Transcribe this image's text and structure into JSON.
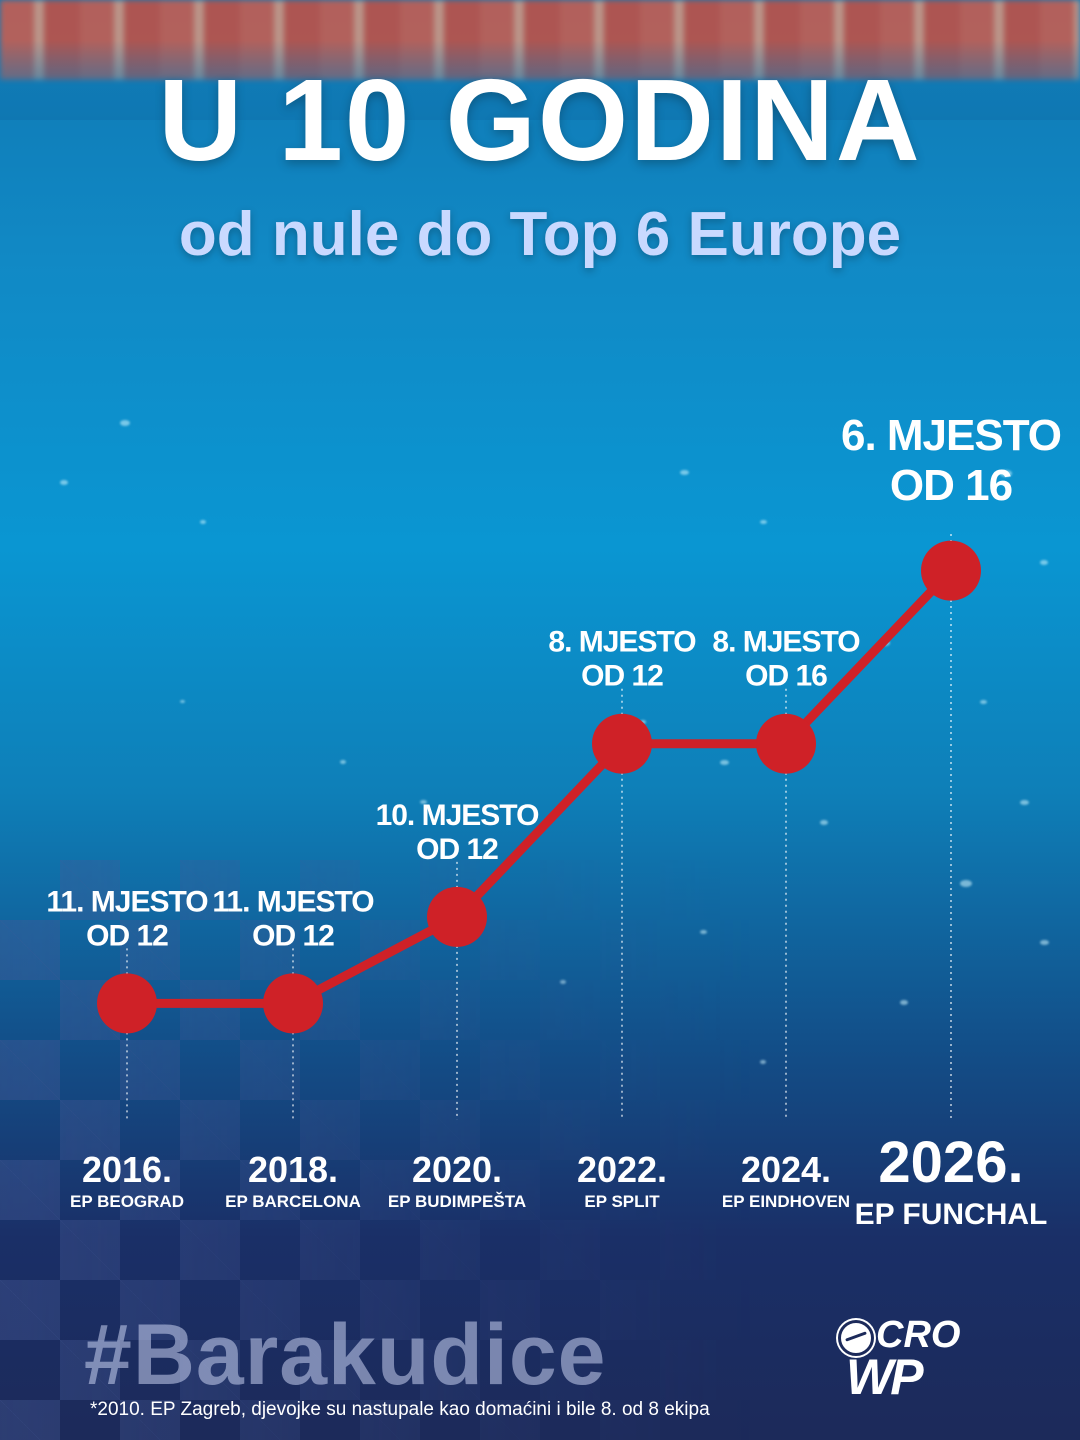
{
  "header": {
    "title": "U 10 GODINA",
    "subtitle": "od nule do Top 6 Europe"
  },
  "chart_data": {
    "type": "line",
    "categories": [
      "2016.",
      "2018.",
      "2020.",
      "2022.",
      "2024.",
      "2026."
    ],
    "events": [
      "EP BEOGRAD",
      "EP BARCELONA",
      "EP BUDIMPEŠTA",
      "EP SPLIT",
      "EP EINDHOVEN",
      "EP FUNCHAL"
    ],
    "series": [
      {
        "values": [
          11,
          11,
          10,
          8,
          8,
          6
        ]
      }
    ],
    "point_labels": [
      [
        "11. MJESTO",
        "OD 12"
      ],
      [
        "11. MJESTO",
        "OD 12"
      ],
      [
        "10. MJESTO",
        "OD 12"
      ],
      [
        "8. MJESTO",
        "OD 12"
      ],
      [
        "8. MJESTO",
        "OD 16"
      ],
      [
        "6. MJESTO",
        "OD 16"
      ]
    ],
    "y_axis": "placement (lower is better, inverted)",
    "ylim": [
      12,
      5
    ],
    "title": "",
    "xlabel": "",
    "ylabel": "",
    "grid": false,
    "line_color": "#cf2127",
    "marker_color": "#cf2127",
    "guide_style": "dotted vertical lines"
  },
  "footer": {
    "hashtag": "#Barakudice",
    "footnote": "*2010. EP Zagreb, djevojke su nastupale kao domaćini i bile 8. od 8 ekipa",
    "logo_top": "CRO",
    "logo_bottom": "WP"
  },
  "colors": {
    "background_top": "#0f77b2",
    "background_bottom": "#1c2a5a",
    "accent_red": "#cf2127",
    "subtitle": "#c9d9ff"
  }
}
